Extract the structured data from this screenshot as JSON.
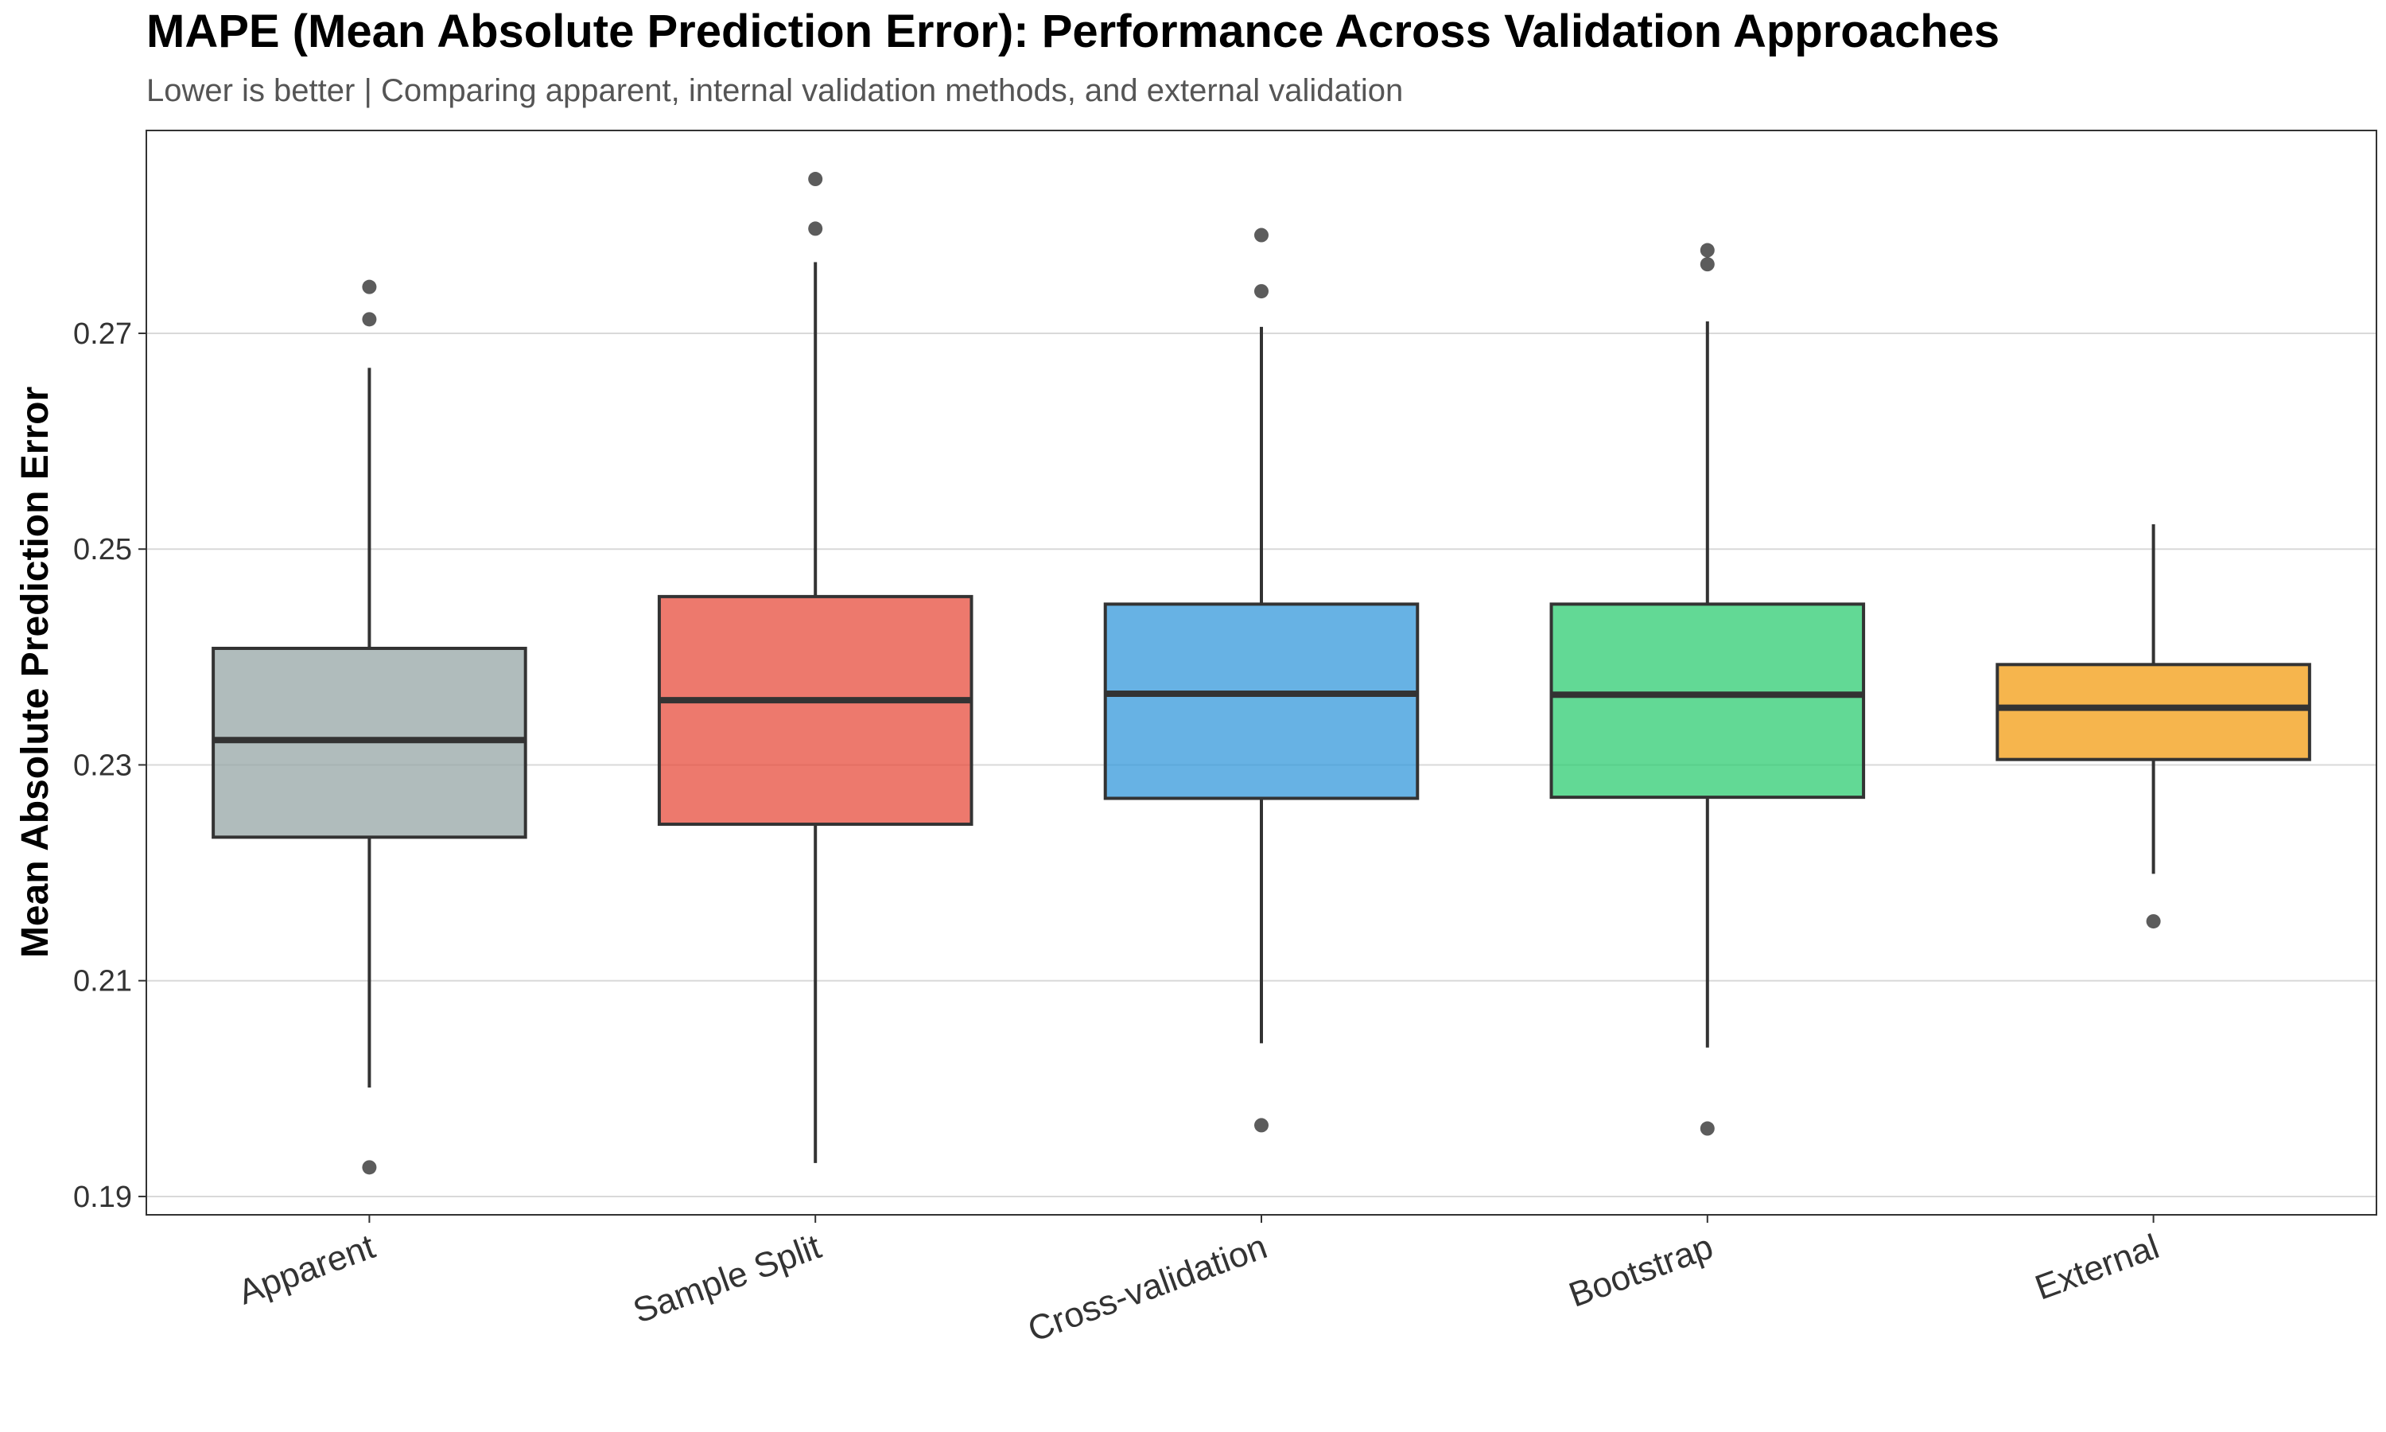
{
  "chart_data": {
    "type": "box",
    "title": "MAPE (Mean Absolute Prediction Error): Performance Across Validation Approaches",
    "subtitle": "Lower is better | Comparing apparent, internal validation methods, and external validation",
    "xlabel": "",
    "ylabel": "Mean Absolute Prediction Error",
    "ylim": [
      0.1883,
      0.2888
    ],
    "yticks": [
      0.19,
      0.21,
      0.23,
      0.25,
      0.27
    ],
    "ytick_labels": [
      "0.19",
      "0.21",
      "0.23",
      "0.25",
      "0.27"
    ],
    "grid": "horizontal",
    "legend": "none",
    "categories": [
      "Apparent",
      "Sample Split",
      "Cross-validation",
      "Bootstrap",
      "External"
    ],
    "series": [
      {
        "category": "Apparent",
        "color": "#95a5a6",
        "whisker_low": 0.2001,
        "q1": 0.2233,
        "median": 0.2323,
        "q3": 0.2408,
        "whisker_high": 0.2668,
        "outliers": [
          0.1927,
          0.2713,
          0.2743
        ]
      },
      {
        "category": "Sample Split",
        "color": "#e74c3c",
        "whisker_low": 0.1931,
        "q1": 0.2245,
        "median": 0.236,
        "q3": 0.2456,
        "whisker_high": 0.2766,
        "outliers": [
          0.2797,
          0.2843
        ]
      },
      {
        "category": "Cross-validation",
        "color": "#3498db",
        "whisker_low": 0.2042,
        "q1": 0.2269,
        "median": 0.2366,
        "q3": 0.2449,
        "whisker_high": 0.2706,
        "outliers": [
          0.1966,
          0.2739,
          0.2791
        ]
      },
      {
        "category": "Bootstrap",
        "color": "#2ecc71",
        "whisker_low": 0.2038,
        "q1": 0.227,
        "median": 0.2365,
        "q3": 0.2449,
        "whisker_high": 0.2711,
        "outliers": [
          0.1963,
          0.2764,
          0.2777
        ]
      },
      {
        "category": "External",
        "color": "#f39c12",
        "whisker_low": 0.2199,
        "q1": 0.2305,
        "median": 0.2353,
        "q3": 0.2393,
        "whisker_high": 0.2523,
        "outliers": [
          0.2155
        ]
      }
    ]
  }
}
